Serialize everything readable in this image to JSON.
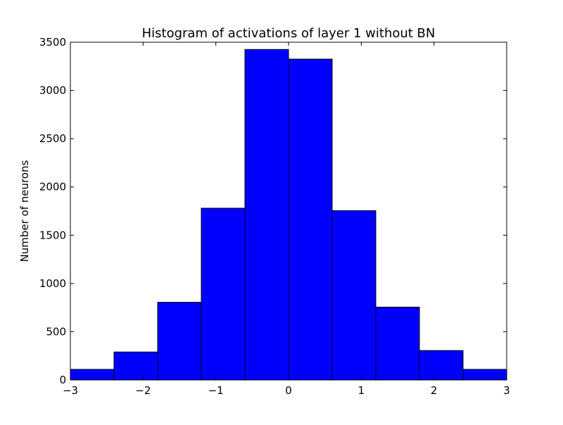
{
  "chart_data": {
    "type": "bar",
    "title": "Histogram of activations of layer 1  without BN",
    "xlabel": "",
    "ylabel": "Number of neurons",
    "bin_edges": [
      -3,
      -2.4,
      -1.8,
      -1.2,
      -0.6,
      0,
      0.6,
      1.2,
      1.8,
      2.4,
      3
    ],
    "values": [
      110,
      290,
      805,
      1780,
      3425,
      3325,
      1755,
      755,
      305,
      110
    ],
    "xlim": [
      -3,
      3
    ],
    "ylim": [
      0,
      3500
    ],
    "x_ticks": [
      -3,
      -2,
      -1,
      0,
      1,
      2,
      3
    ],
    "x_tick_labels": [
      "−3",
      "−2",
      "−1",
      "0",
      "1",
      "2",
      "3"
    ],
    "y_ticks": [
      0,
      500,
      1000,
      1500,
      2000,
      2500,
      3000,
      3500
    ],
    "y_tick_labels": [
      "0",
      "500",
      "1000",
      "1500",
      "2000",
      "2500",
      "3000",
      "3500"
    ],
    "bar_color": "#0000ff",
    "edge_color": "#000000",
    "grid": false,
    "legend": false
  }
}
